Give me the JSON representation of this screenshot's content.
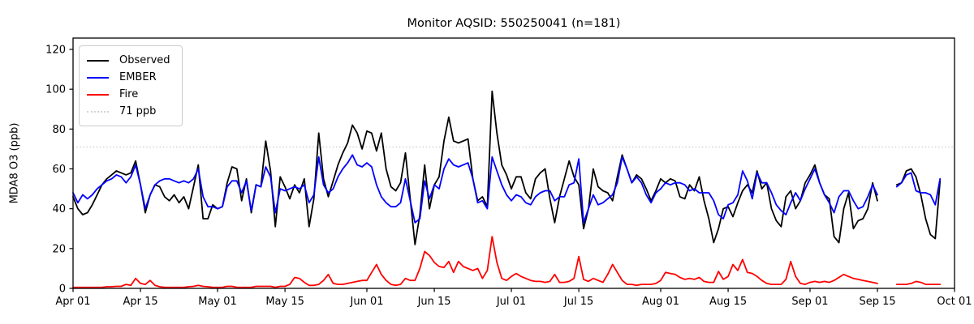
{
  "chart_data": {
    "type": "line",
    "title": "Monitor AQSID: 550250041 (n=181)",
    "xlabel": "",
    "ylabel": "MDA8 O3 (ppb)",
    "ylim": [
      0,
      125.7
    ],
    "y_ticks": [
      0,
      20,
      40,
      60,
      80,
      100,
      120
    ],
    "x_tick_labels": [
      "Apr 01",
      "Apr 15",
      "May 01",
      "May 15",
      "Jun 01",
      "Jun 15",
      "Jul 01",
      "Jul 15",
      "Aug 01",
      "Aug 15",
      "Sep 01",
      "Sep 15",
      "Oct 01"
    ],
    "x_tick_days": [
      0,
      14,
      30,
      44,
      61,
      75,
      91,
      105,
      122,
      136,
      153,
      167,
      183
    ],
    "x_start_label": "Apr 01",
    "x_end_label": "Oct 01",
    "n_days": 183,
    "grid": false,
    "legend_position": "upper left",
    "threshold": {
      "value": 71,
      "label": "71 ppb",
      "color": "#d3d3d3",
      "style": "dotted"
    },
    "series": [
      {
        "name": "Observed",
        "color": "#000000",
        "values": [
          46,
          40,
          37,
          38,
          42,
          47,
          52,
          55,
          57,
          59,
          58,
          57,
          58,
          64,
          52,
          38,
          47,
          52,
          51,
          46,
          44,
          47,
          43,
          46,
          40,
          51,
          62,
          35,
          35,
          42,
          40,
          41,
          53,
          61,
          60,
          44,
          55,
          38,
          52,
          51,
          74,
          59,
          31,
          56,
          51,
          45,
          52,
          48,
          55,
          31,
          45,
          78,
          55,
          46,
          54,
          62,
          68,
          73,
          82,
          78,
          70,
          79,
          78,
          69,
          78,
          60,
          51,
          49,
          53,
          68,
          45,
          22,
          37,
          62,
          40,
          52,
          56,
          74,
          86,
          74,
          73,
          74,
          75,
          55,
          44,
          46,
          41,
          99,
          78,
          62,
          57,
          50,
          56,
          56,
          48,
          45,
          55,
          58,
          60,
          45,
          33,
          46,
          55,
          64,
          56,
          52,
          30,
          40,
          60,
          51,
          49,
          48,
          44,
          56,
          67,
          60,
          53,
          57,
          55,
          50,
          44,
          49,
          55,
          53,
          55,
          54,
          46,
          45,
          52,
          49,
          56,
          44,
          35,
          23,
          30,
          40,
          41,
          36,
          43,
          49,
          52,
          48,
          59,
          50,
          53,
          40,
          34,
          31,
          46,
          49,
          40,
          44,
          53,
          57,
          62,
          53,
          47,
          45,
          26,
          23,
          40,
          48,
          30,
          34,
          35,
          40,
          53,
          44,
          null,
          null,
          null,
          52,
          53,
          59,
          60,
          56,
          47,
          35,
          27,
          25,
          54,
          null,
          null
        ]
      },
      {
        "name": "EMBER",
        "color": "#0000ff",
        "values": [
          48,
          43,
          47,
          45,
          47,
          50,
          52,
          54,
          55,
          57,
          56,
          53,
          56,
          62,
          52,
          40,
          47,
          52,
          54,
          55,
          55,
          54,
          53,
          54,
          53,
          55,
          60,
          46,
          41,
          41,
          40,
          41,
          51,
          54,
          54,
          48,
          54,
          39,
          52,
          51,
          61,
          56,
          38,
          50,
          49,
          50,
          51,
          50,
          52,
          43,
          47,
          66,
          52,
          48,
          50,
          56,
          60,
          63,
          67,
          62,
          61,
          63,
          61,
          52,
          46,
          43,
          41,
          41,
          43,
          55,
          44,
          33,
          35,
          54,
          45,
          52,
          50,
          60,
          65,
          62,
          61,
          62,
          63,
          55,
          43,
          44,
          40,
          66,
          59,
          52,
          47,
          44,
          47,
          46,
          43,
          42,
          46,
          48,
          49,
          49,
          44,
          46,
          46,
          52,
          53,
          65,
          33,
          40,
          47,
          42,
          43,
          45,
          47,
          53,
          66,
          60,
          53,
          56,
          53,
          47,
          43,
          48,
          50,
          53,
          52,
          53,
          53,
          52,
          49,
          50,
          48,
          48,
          48,
          44,
          37,
          35,
          42,
          43,
          47,
          59,
          54,
          45,
          58,
          53,
          53,
          48,
          42,
          39,
          37,
          43,
          48,
          44,
          50,
          55,
          60,
          53,
          47,
          43,
          38,
          46,
          49,
          49,
          44,
          40,
          41,
          46,
          52,
          47,
          null,
          null,
          null,
          51,
          53,
          57,
          58,
          49,
          48,
          48,
          47,
          42,
          55,
          null,
          null
        ]
      },
      {
        "name": "Fire",
        "color": "#ff0000",
        "values": [
          0.5,
          0.5,
          0.5,
          0.5,
          0.5,
          0.5,
          0.5,
          0.8,
          0.8,
          1,
          1,
          2,
          1.5,
          5,
          2.5,
          2,
          4,
          1.5,
          0.8,
          0.5,
          0.5,
          0.5,
          0.5,
          0.5,
          0.8,
          1,
          1.5,
          1,
          0.8,
          0.5,
          0.5,
          0.5,
          1,
          1,
          0.5,
          0.5,
          0.5,
          0.5,
          1,
          1,
          1,
          1,
          0.5,
          1,
          1,
          2,
          5.5,
          5,
          3,
          1.5,
          1.5,
          2,
          4,
          7,
          2.5,
          2,
          2,
          2.5,
          3,
          3.5,
          4,
          4,
          8,
          12,
          7,
          4,
          2,
          1.5,
          2,
          5,
          4,
          4,
          10,
          18.5,
          16.5,
          13,
          11,
          10.5,
          13.5,
          8,
          13.5,
          11,
          10,
          9,
          10,
          5,
          9,
          26,
          13,
          5,
          4,
          6,
          7.5,
          6,
          5,
          4,
          3.5,
          3.5,
          3,
          3.5,
          7,
          3,
          3,
          3.5,
          5,
          16,
          4.5,
          3.5,
          5,
          4,
          3,
          7,
          12,
          8,
          4,
          2,
          2,
          1.5,
          2,
          2,
          2,
          2.5,
          4,
          8,
          7.5,
          7,
          5.5,
          4.5,
          5,
          4.5,
          5.5,
          3.5,
          3,
          3,
          8.5,
          4.5,
          6,
          12,
          9,
          14.5,
          8,
          7.5,
          6,
          4,
          2.5,
          2,
          2,
          2,
          4.5,
          13.5,
          6,
          2.5,
          2,
          3,
          3.5,
          3,
          3.5,
          3,
          4,
          5.5,
          7,
          6,
          5,
          4.5,
          4,
          3.5,
          3,
          2.5,
          null,
          null,
          null,
          2,
          2,
          2,
          2.5,
          3.5,
          3,
          2,
          2,
          2,
          2,
          null,
          null
        ]
      }
    ],
    "legend_items": [
      "Observed",
      "EMBER",
      "Fire",
      "71 ppb"
    ]
  }
}
